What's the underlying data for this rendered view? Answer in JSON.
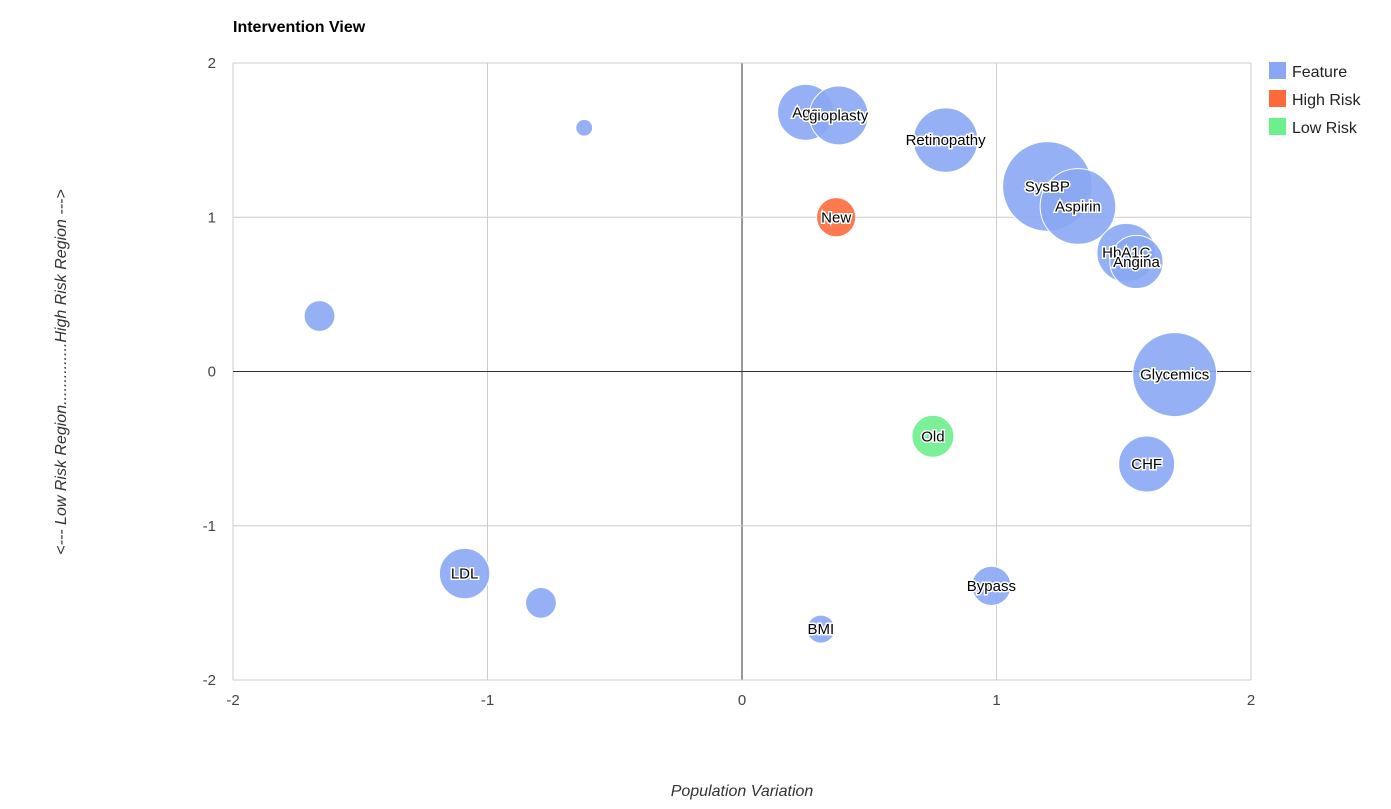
{
  "chart_data": {
    "type": "bubble",
    "title": "Intervention View",
    "xlabel": "Population Variation",
    "ylabel": "<--- Low Risk Region..............High Risk Region --->",
    "xlim": [
      -2,
      2
    ],
    "ylim": [
      -2,
      2
    ],
    "x_ticks": [
      "-2",
      "-1",
      "0",
      "1",
      "2"
    ],
    "y_ticks": [
      "-2",
      "-1",
      "0",
      "1",
      "2"
    ],
    "grid": true,
    "legend_position": "right",
    "legend": [
      {
        "name": "Feature",
        "color": "#8aa7f3"
      },
      {
        "name": "High Risk",
        "color": "#ff6a3b"
      },
      {
        "name": "Low Risk",
        "color": "#6cf08c"
      }
    ],
    "points": [
      {
        "label": "",
        "x": -0.62,
        "y": 1.58,
        "size": 0.3,
        "group": "Feature"
      },
      {
        "label": "",
        "x": -1.66,
        "y": 0.36,
        "size": 0.55,
        "group": "Feature"
      },
      {
        "label": "LDL",
        "x": -1.09,
        "y": -1.31,
        "size": 0.9,
        "group": "Feature"
      },
      {
        "label": "",
        "x": -0.79,
        "y": -1.5,
        "size": 0.55,
        "group": "Feature"
      },
      {
        "label": "BMI",
        "x": 0.31,
        "y": -1.67,
        "size": 0.5,
        "group": "Feature"
      },
      {
        "label": "Bypass",
        "x": 0.98,
        "y": -1.39,
        "size": 0.7,
        "group": "Feature"
      },
      {
        "label": "Age",
        "x": 0.25,
        "y": 1.68,
        "size": 1.0,
        "group": "Feature"
      },
      {
        "label": "gioplasty",
        "x": 0.38,
        "y": 1.66,
        "size": 1.05,
        "group": "Feature"
      },
      {
        "label": "Retinopathy",
        "x": 0.8,
        "y": 1.5,
        "size": 1.15,
        "group": "Feature"
      },
      {
        "label": "SysBP",
        "x": 1.2,
        "y": 1.2,
        "size": 1.6,
        "group": "Feature"
      },
      {
        "label": "Aspirin",
        "x": 1.32,
        "y": 1.07,
        "size": 1.35,
        "group": "Feature"
      },
      {
        "label": "HbA1C",
        "x": 1.51,
        "y": 0.77,
        "size": 1.05,
        "group": "Feature"
      },
      {
        "label": "Angina",
        "x": 1.55,
        "y": 0.71,
        "size": 0.95,
        "group": "Feature"
      },
      {
        "label": "Glycemics",
        "x": 1.7,
        "y": -0.02,
        "size": 1.5,
        "group": "Feature"
      },
      {
        "label": "CHF",
        "x": 1.59,
        "y": -0.6,
        "size": 1.0,
        "group": "Feature"
      },
      {
        "label": "New",
        "x": 0.37,
        "y": 1.0,
        "size": 0.7,
        "group": "High Risk"
      },
      {
        "label": "Old",
        "x": 0.75,
        "y": -0.42,
        "size": 0.75,
        "group": "Low Risk"
      }
    ]
  }
}
